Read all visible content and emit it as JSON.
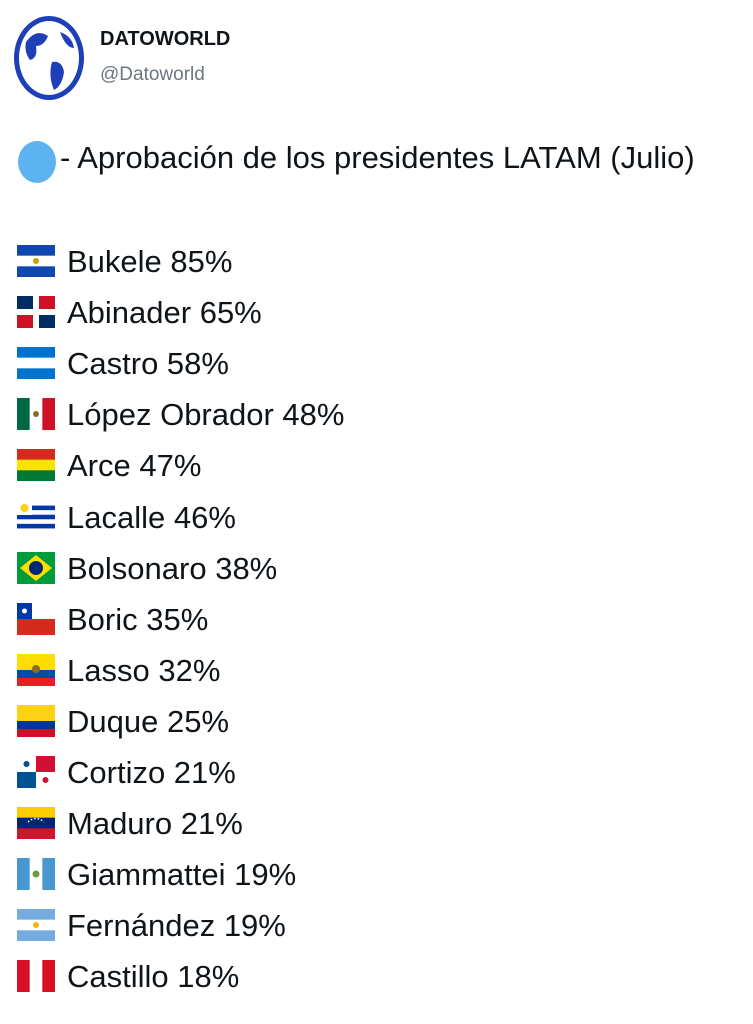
{
  "header": {
    "name": "DATOWORLD",
    "handle": "@Datoworld"
  },
  "post": {
    "title": "- Aprobación de los presidentes LATAM (Julio)",
    "items": [
      "Bukele 85%",
      "Abinader 65%",
      "Castro 58%",
      "López Obrador 48%",
      "Arce 47%",
      "Lacalle 46%",
      "Bolsonaro 38%",
      "Boric 35%",
      "Lasso 32%",
      "Duque 25%",
      "Cortizo 21%",
      "Maduro 21%",
      "Giammattei 19%",
      "Fernández 19%",
      "Castillo 18%"
    ]
  }
}
